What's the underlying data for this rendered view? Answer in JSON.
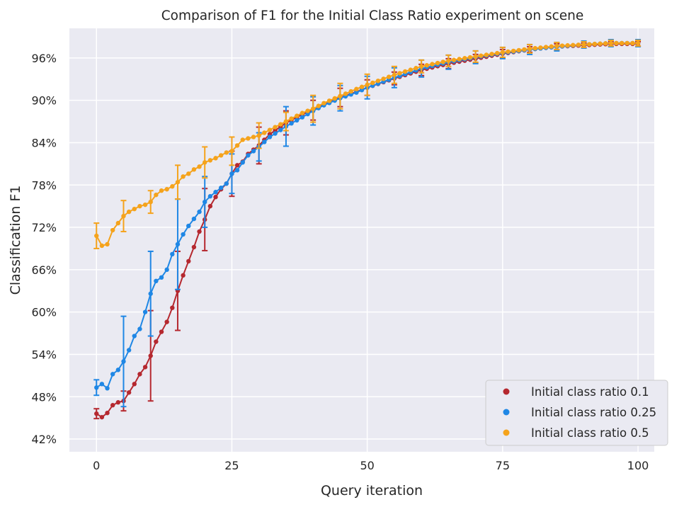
{
  "chart_data": {
    "type": "line",
    "title": "Comparison of F1 for the Initial Class Ratio experiment on scene",
    "xlabel": "Query iteration",
    "ylabel": "Classification F1",
    "xlim": [
      -5,
      103
    ],
    "ylim": [
      40.2,
      100.2
    ],
    "xticks": [
      0,
      25,
      50,
      75,
      100
    ],
    "xtick_labels": [
      "0",
      "25",
      "50",
      "75",
      "100"
    ],
    "yticks": [
      42,
      48,
      54,
      60,
      66,
      72,
      78,
      84,
      90,
      96
    ],
    "ytick_labels": [
      "42%",
      "48%",
      "54%",
      "60%",
      "66%",
      "72%",
      "78%",
      "84%",
      "90%",
      "96%"
    ],
    "grid": true,
    "legend_position": "lower-right",
    "background": "#eaeaf2",
    "series": [
      {
        "name": "Initial class ratio 0.1",
        "color": "#b5282f",
        "anchors": [
          [
            0,
            45.6
          ],
          [
            1,
            45.1
          ],
          [
            2,
            45.7
          ],
          [
            3,
            46.8
          ],
          [
            4,
            47.2
          ],
          [
            5,
            47.4
          ],
          [
            6,
            48.6
          ],
          [
            7,
            49.8
          ],
          [
            8,
            51.2
          ],
          [
            9,
            52.2
          ],
          [
            10,
            53.8
          ],
          [
            11,
            55.8
          ],
          [
            12,
            57.2
          ],
          [
            13,
            58.6
          ],
          [
            14,
            60.6
          ],
          [
            15,
            63.0
          ],
          [
            16,
            65.2
          ],
          [
            17,
            67.2
          ],
          [
            18,
            69.2
          ],
          [
            19,
            71.4
          ],
          [
            20,
            73.1
          ],
          [
            21,
            75.0
          ],
          [
            22,
            76.3
          ],
          [
            23,
            77.4
          ],
          [
            24,
            78.2
          ],
          [
            25,
            79.6
          ],
          [
            26,
            80.8
          ],
          [
            27,
            81.3
          ],
          [
            28,
            82.4
          ],
          [
            29,
            83.0
          ],
          [
            30,
            83.6
          ],
          [
            32,
            85.2
          ],
          [
            35,
            86.8
          ],
          [
            38,
            88.0
          ],
          [
            40,
            88.6
          ],
          [
            42,
            89.4
          ],
          [
            45,
            90.4
          ],
          [
            48,
            91.2
          ],
          [
            50,
            91.8
          ],
          [
            55,
            93.1
          ],
          [
            60,
            94.3
          ],
          [
            65,
            95.2
          ],
          [
            70,
            95.9
          ],
          [
            75,
            96.6
          ],
          [
            80,
            97.2
          ],
          [
            85,
            97.6
          ],
          [
            90,
            97.8
          ],
          [
            95,
            98.0
          ],
          [
            100,
            98.0
          ]
        ],
        "errors": [
          [
            0,
            0.7
          ],
          [
            5,
            1.4
          ],
          [
            10,
            6.4
          ],
          [
            15,
            5.6
          ],
          [
            20,
            4.4
          ],
          [
            25,
            3.2
          ],
          [
            30,
            2.6
          ],
          [
            35,
            1.7
          ],
          [
            40,
            1.4
          ],
          [
            45,
            1.3
          ],
          [
            50,
            1.1
          ],
          [
            55,
            0.9
          ],
          [
            60,
            0.8
          ],
          [
            65,
            0.7
          ],
          [
            70,
            0.6
          ],
          [
            75,
            0.6
          ],
          [
            80,
            0.4
          ],
          [
            85,
            0.4
          ],
          [
            90,
            0.3
          ],
          [
            95,
            0.3
          ],
          [
            100,
            0.3
          ]
        ]
      },
      {
        "name": "Initial class ratio 0.25",
        "color": "#1f87e5",
        "anchors": [
          [
            0,
            49.3
          ],
          [
            1,
            49.8
          ],
          [
            2,
            49.2
          ],
          [
            3,
            51.2
          ],
          [
            4,
            51.8
          ],
          [
            5,
            53.0
          ],
          [
            6,
            54.6
          ],
          [
            7,
            56.6
          ],
          [
            8,
            57.6
          ],
          [
            9,
            60.0
          ],
          [
            10,
            62.6
          ],
          [
            11,
            64.4
          ],
          [
            12,
            64.9
          ],
          [
            13,
            66.0
          ],
          [
            14,
            68.2
          ],
          [
            15,
            69.6
          ],
          [
            16,
            71.0
          ],
          [
            17,
            72.2
          ],
          [
            18,
            73.2
          ],
          [
            19,
            74.2
          ],
          [
            20,
            75.6
          ],
          [
            21,
            76.4
          ],
          [
            22,
            77.0
          ],
          [
            23,
            77.6
          ],
          [
            24,
            78.2
          ],
          [
            25,
            79.6
          ],
          [
            26,
            80.1
          ],
          [
            27,
            81.2
          ],
          [
            28,
            82.2
          ],
          [
            29,
            82.8
          ],
          [
            30,
            83.4
          ],
          [
            32,
            84.8
          ],
          [
            35,
            86.3
          ],
          [
            38,
            87.6
          ],
          [
            40,
            88.5
          ],
          [
            42,
            89.3
          ],
          [
            45,
            90.3
          ],
          [
            48,
            91.1
          ],
          [
            50,
            91.8
          ],
          [
            55,
            93.2
          ],
          [
            60,
            94.5
          ],
          [
            65,
            95.4
          ],
          [
            70,
            96.1
          ],
          [
            75,
            96.7
          ],
          [
            80,
            97.2
          ],
          [
            85,
            97.6
          ],
          [
            90,
            97.9
          ],
          [
            95,
            98.1
          ],
          [
            100,
            98.1
          ]
        ],
        "errors": [
          [
            0,
            1.1
          ],
          [
            5,
            6.4
          ],
          [
            10,
            6.0
          ],
          [
            15,
            6.4
          ],
          [
            20,
            3.6
          ],
          [
            25,
            2.8
          ],
          [
            30,
            2.0
          ],
          [
            35,
            2.8
          ],
          [
            40,
            2.0
          ],
          [
            45,
            1.8
          ],
          [
            50,
            1.6
          ],
          [
            55,
            1.4
          ],
          [
            60,
            1.2
          ],
          [
            65,
            1.0
          ],
          [
            70,
            0.9
          ],
          [
            75,
            0.8
          ],
          [
            80,
            0.7
          ],
          [
            85,
            0.6
          ],
          [
            90,
            0.5
          ],
          [
            95,
            0.5
          ],
          [
            100,
            0.5
          ]
        ]
      },
      {
        "name": "Initial class ratio 0.5",
        "color": "#f5a31c",
        "anchors": [
          [
            0,
            70.8
          ],
          [
            1,
            69.4
          ],
          [
            2,
            69.6
          ],
          [
            3,
            71.6
          ],
          [
            4,
            72.6
          ],
          [
            5,
            73.6
          ],
          [
            6,
            74.2
          ],
          [
            7,
            74.6
          ],
          [
            8,
            75.0
          ],
          [
            9,
            75.2
          ],
          [
            10,
            75.6
          ],
          [
            11,
            76.6
          ],
          [
            12,
            77.2
          ],
          [
            13,
            77.4
          ],
          [
            14,
            77.8
          ],
          [
            15,
            78.4
          ],
          [
            16,
            79.2
          ],
          [
            17,
            79.6
          ],
          [
            18,
            80.2
          ],
          [
            19,
            80.6
          ],
          [
            20,
            81.2
          ],
          [
            22,
            81.8
          ],
          [
            24,
            82.6
          ],
          [
            25,
            82.8
          ],
          [
            26,
            83.6
          ],
          [
            27,
            84.4
          ],
          [
            28,
            84.6
          ],
          [
            30,
            85.0
          ],
          [
            32,
            85.8
          ],
          [
            35,
            87.0
          ],
          [
            38,
            88.2
          ],
          [
            40,
            88.8
          ],
          [
            42,
            89.6
          ],
          [
            45,
            90.6
          ],
          [
            48,
            91.6
          ],
          [
            50,
            92.2
          ],
          [
            55,
            93.6
          ],
          [
            60,
            94.8
          ],
          [
            65,
            95.6
          ],
          [
            70,
            96.2
          ],
          [
            75,
            96.8
          ],
          [
            80,
            97.3
          ],
          [
            85,
            97.7
          ],
          [
            90,
            97.9
          ],
          [
            95,
            98.1
          ],
          [
            100,
            98.1
          ]
        ],
        "errors": [
          [
            0,
            1.8
          ],
          [
            5,
            2.2
          ],
          [
            10,
            1.6
          ],
          [
            15,
            2.4
          ],
          [
            20,
            2.2
          ],
          [
            25,
            2.0
          ],
          [
            30,
            1.8
          ],
          [
            35,
            1.3
          ],
          [
            40,
            1.9
          ],
          [
            45,
            1.8
          ],
          [
            50,
            1.5
          ],
          [
            55,
            1.2
          ],
          [
            60,
            0.9
          ],
          [
            65,
            0.8
          ],
          [
            70,
            0.8
          ],
          [
            75,
            0.7
          ],
          [
            80,
            0.6
          ],
          [
            85,
            0.5
          ],
          [
            90,
            0.4
          ],
          [
            95,
            0.4
          ],
          [
            100,
            0.4
          ]
        ]
      }
    ]
  }
}
